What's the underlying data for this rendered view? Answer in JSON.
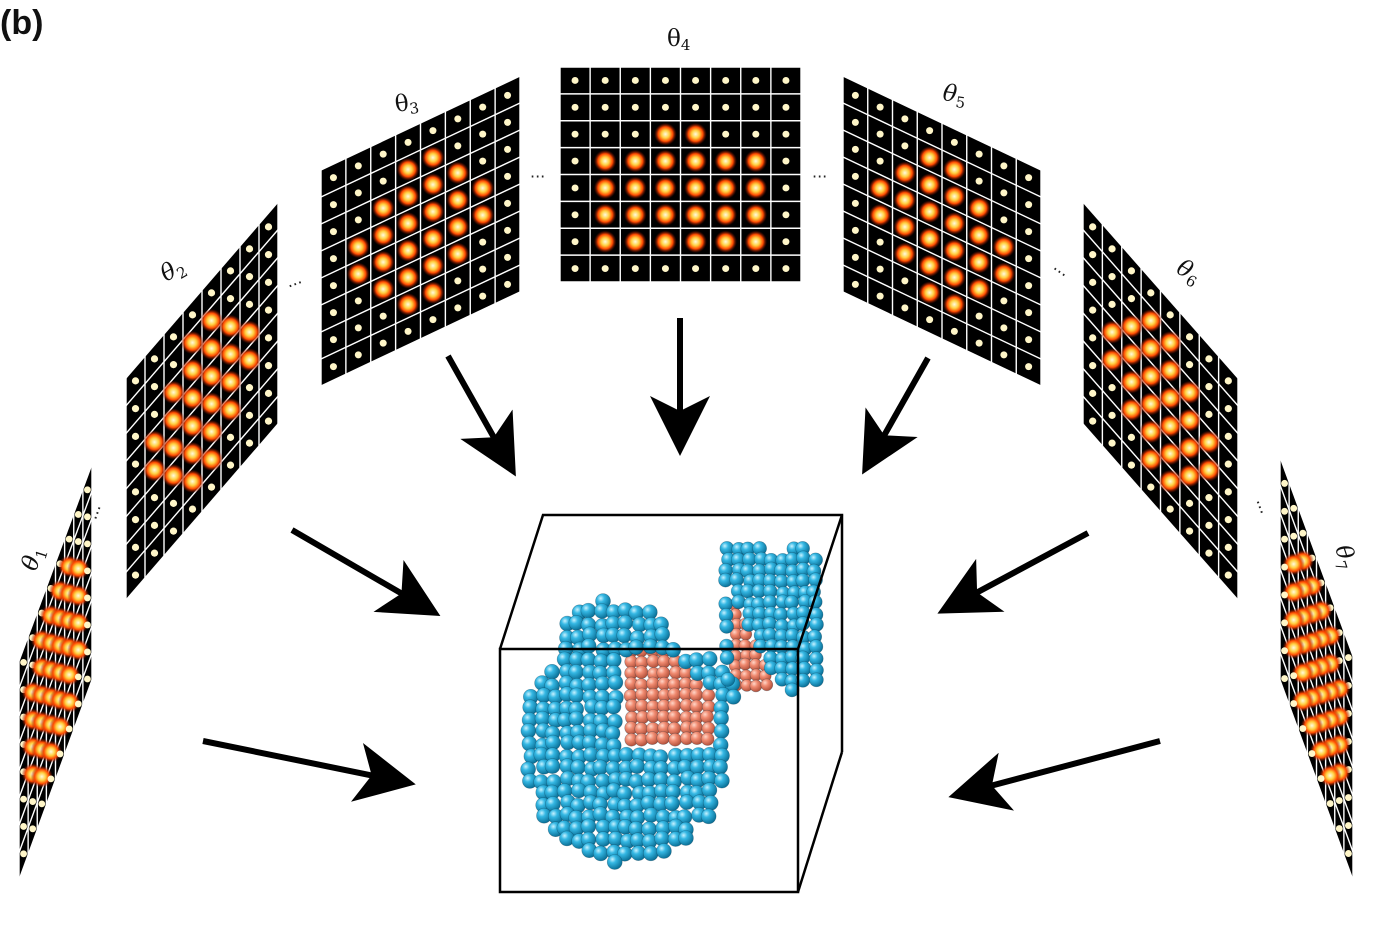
{
  "panel_label": "(b)",
  "projections": [
    {
      "id": "theta1",
      "symbol": "θ",
      "index": "1"
    },
    {
      "id": "theta2",
      "symbol": "θ",
      "index": "2"
    },
    {
      "id": "theta3",
      "symbol": "θ",
      "index": "3"
    },
    {
      "id": "theta4",
      "symbol": "θ",
      "index": "4"
    },
    {
      "id": "theta5",
      "symbol": "θ",
      "index": "5"
    },
    {
      "id": "theta6",
      "symbol": "θ",
      "index": "6"
    },
    {
      "id": "theta7",
      "symbol": "θ",
      "index": "7"
    }
  ],
  "ellipsis": "···",
  "grid_size": 8,
  "colors": {
    "tile_background": "#000000",
    "tile_grid": "#ffffff",
    "spot_core": "#fff6c8",
    "spot_hot": "#ff3a00",
    "spot_glow": "#8a1000",
    "arrow": "#000000",
    "atom_shell": "#1fa3d0",
    "atom_core": "#e8806a",
    "box_edge": "#000000"
  }
}
